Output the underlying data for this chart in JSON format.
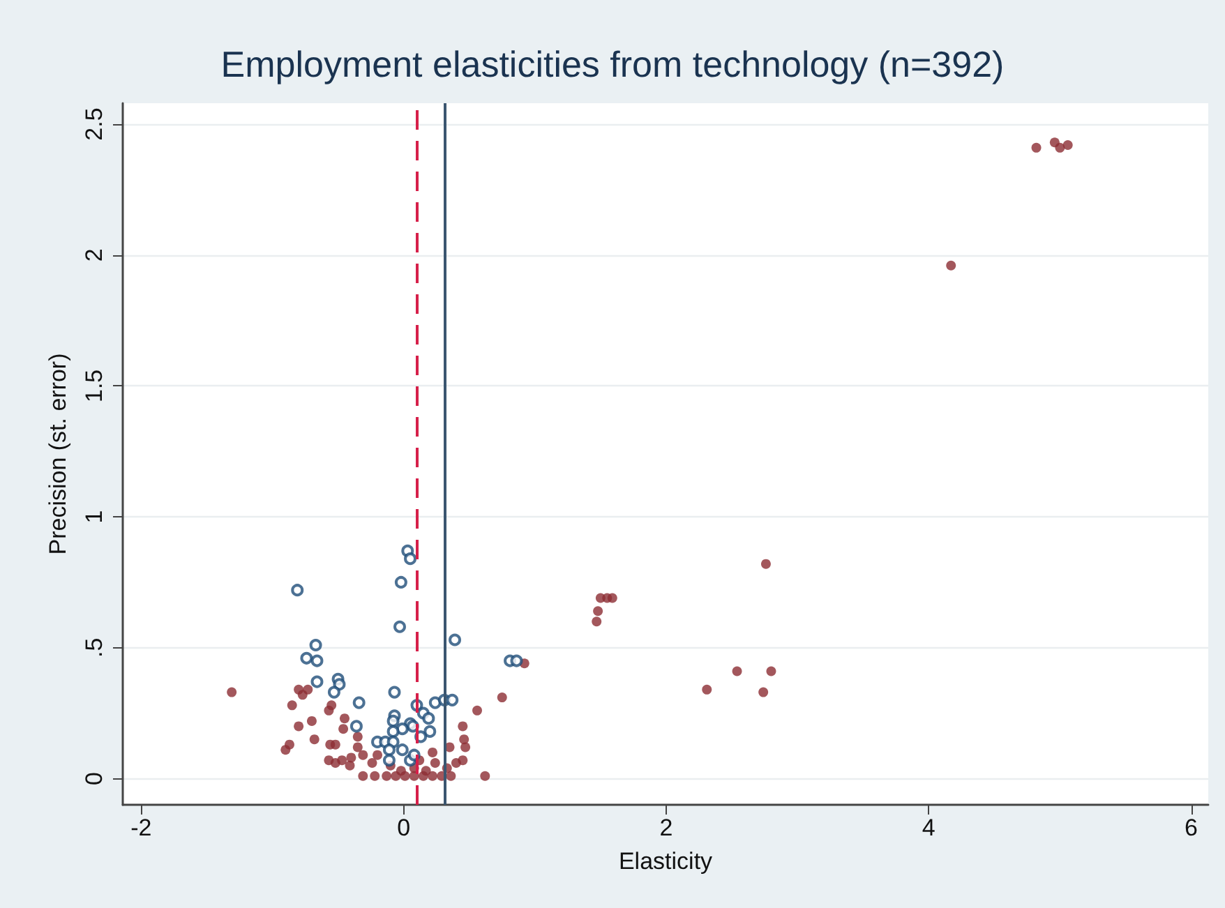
{
  "chart_data": {
    "type": "scatter",
    "title": "Employment elasticities from technology (n=392)",
    "xlabel": "Elasticity",
    "ylabel": "Precision (st. error)",
    "xlim": [
      -2.14,
      6.13
    ],
    "xticks": [
      -2,
      0,
      2,
      4,
      6
    ],
    "ylim": [
      -0.1,
      2.58
    ],
    "yticks": [
      0,
      {
        "value": 0.5,
        "label": ".5"
      },
      1,
      1.5,
      2,
      2.5
    ],
    "grid": "y",
    "marker": "circle",
    "ref_lines": [
      {
        "axis": "x",
        "value": 0.1,
        "color": "#d6204a",
        "line_style": "dashed"
      },
      {
        "axis": "x",
        "value": 0.31,
        "color": "#3b5670",
        "line_style": "solid"
      }
    ],
    "series": [
      {
        "color": "#8c2d33",
        "x": [
          -1.31,
          -0.9,
          -0.87,
          -0.85,
          -0.8,
          -0.77,
          -0.73,
          -0.8,
          -0.7,
          -0.68,
          -0.57,
          -0.55,
          -0.45,
          -0.46,
          -0.56,
          -0.52,
          -0.57,
          -0.52,
          -0.47,
          -0.41,
          -0.4,
          -0.35,
          -0.35,
          -0.31,
          -0.31,
          -0.22,
          -0.13,
          -0.06,
          0.01,
          0.08,
          0.15,
          0.22,
          0.29,
          0.36,
          0.62,
          -0.02,
          0.08,
          0.17,
          0.24,
          0.33,
          0.4,
          0.45,
          0.47,
          0.46,
          0.45,
          0.35,
          0.22,
          0.56,
          0.75,
          0.92,
          -0.2,
          -0.24,
          -0.1,
          0.12,
          2.76,
          1.5,
          1.55,
          1.59,
          1.48,
          1.47,
          2.31,
          2.54,
          2.8,
          2.74,
          4.17,
          4.82,
          4.96,
          5.0,
          5.06
        ],
        "values": [
          0.33,
          0.11,
          0.13,
          0.28,
          0.34,
          0.32,
          0.34,
          0.2,
          0.22,
          0.15,
          0.26,
          0.28,
          0.23,
          0.19,
          0.13,
          0.13,
          0.07,
          0.06,
          0.07,
          0.05,
          0.08,
          0.16,
          0.12,
          0.09,
          0.01,
          0.01,
          0.01,
          0.01,
          0.01,
          0.01,
          0.01,
          0.01,
          0.01,
          0.01,
          0.01,
          0.03,
          0.04,
          0.03,
          0.06,
          0.04,
          0.06,
          0.07,
          0.12,
          0.15,
          0.2,
          0.12,
          0.1,
          0.26,
          0.31,
          0.44,
          0.09,
          0.06,
          0.05,
          0.07,
          0.82,
          0.69,
          0.69,
          0.69,
          0.64,
          0.6,
          0.34,
          0.41,
          0.41,
          0.33,
          1.96,
          2.41,
          2.43,
          2.41,
          2.42
        ]
      },
      {
        "color": "#1f4e79",
        "x": [
          0.03,
          0.05,
          -0.81,
          -0.02,
          -0.03,
          0.39,
          -0.67,
          -0.74,
          -0.66,
          0.81,
          0.86,
          -0.66,
          -0.5,
          -0.49,
          -0.53,
          -0.07,
          -0.34,
          0.1,
          0.24,
          0.31,
          0.37,
          0.15,
          0.19,
          -0.07,
          -0.08,
          0.05,
          0.07,
          -0.01,
          -0.08,
          -0.36,
          0.2,
          0.13,
          -0.2,
          -0.14,
          -0.08,
          -0.11,
          -0.01,
          -0.11,
          0.05,
          0.08
        ],
        "values": [
          0.87,
          0.84,
          0.72,
          0.75,
          0.58,
          0.53,
          0.51,
          0.46,
          0.45,
          0.45,
          0.45,
          0.37,
          0.38,
          0.36,
          0.33,
          0.33,
          0.29,
          0.28,
          0.29,
          0.3,
          0.3,
          0.25,
          0.23,
          0.24,
          0.22,
          0.21,
          0.2,
          0.19,
          0.18,
          0.2,
          0.18,
          0.16,
          0.14,
          0.14,
          0.14,
          0.11,
          0.11,
          0.07,
          0.07,
          0.09
        ]
      }
    ]
  }
}
